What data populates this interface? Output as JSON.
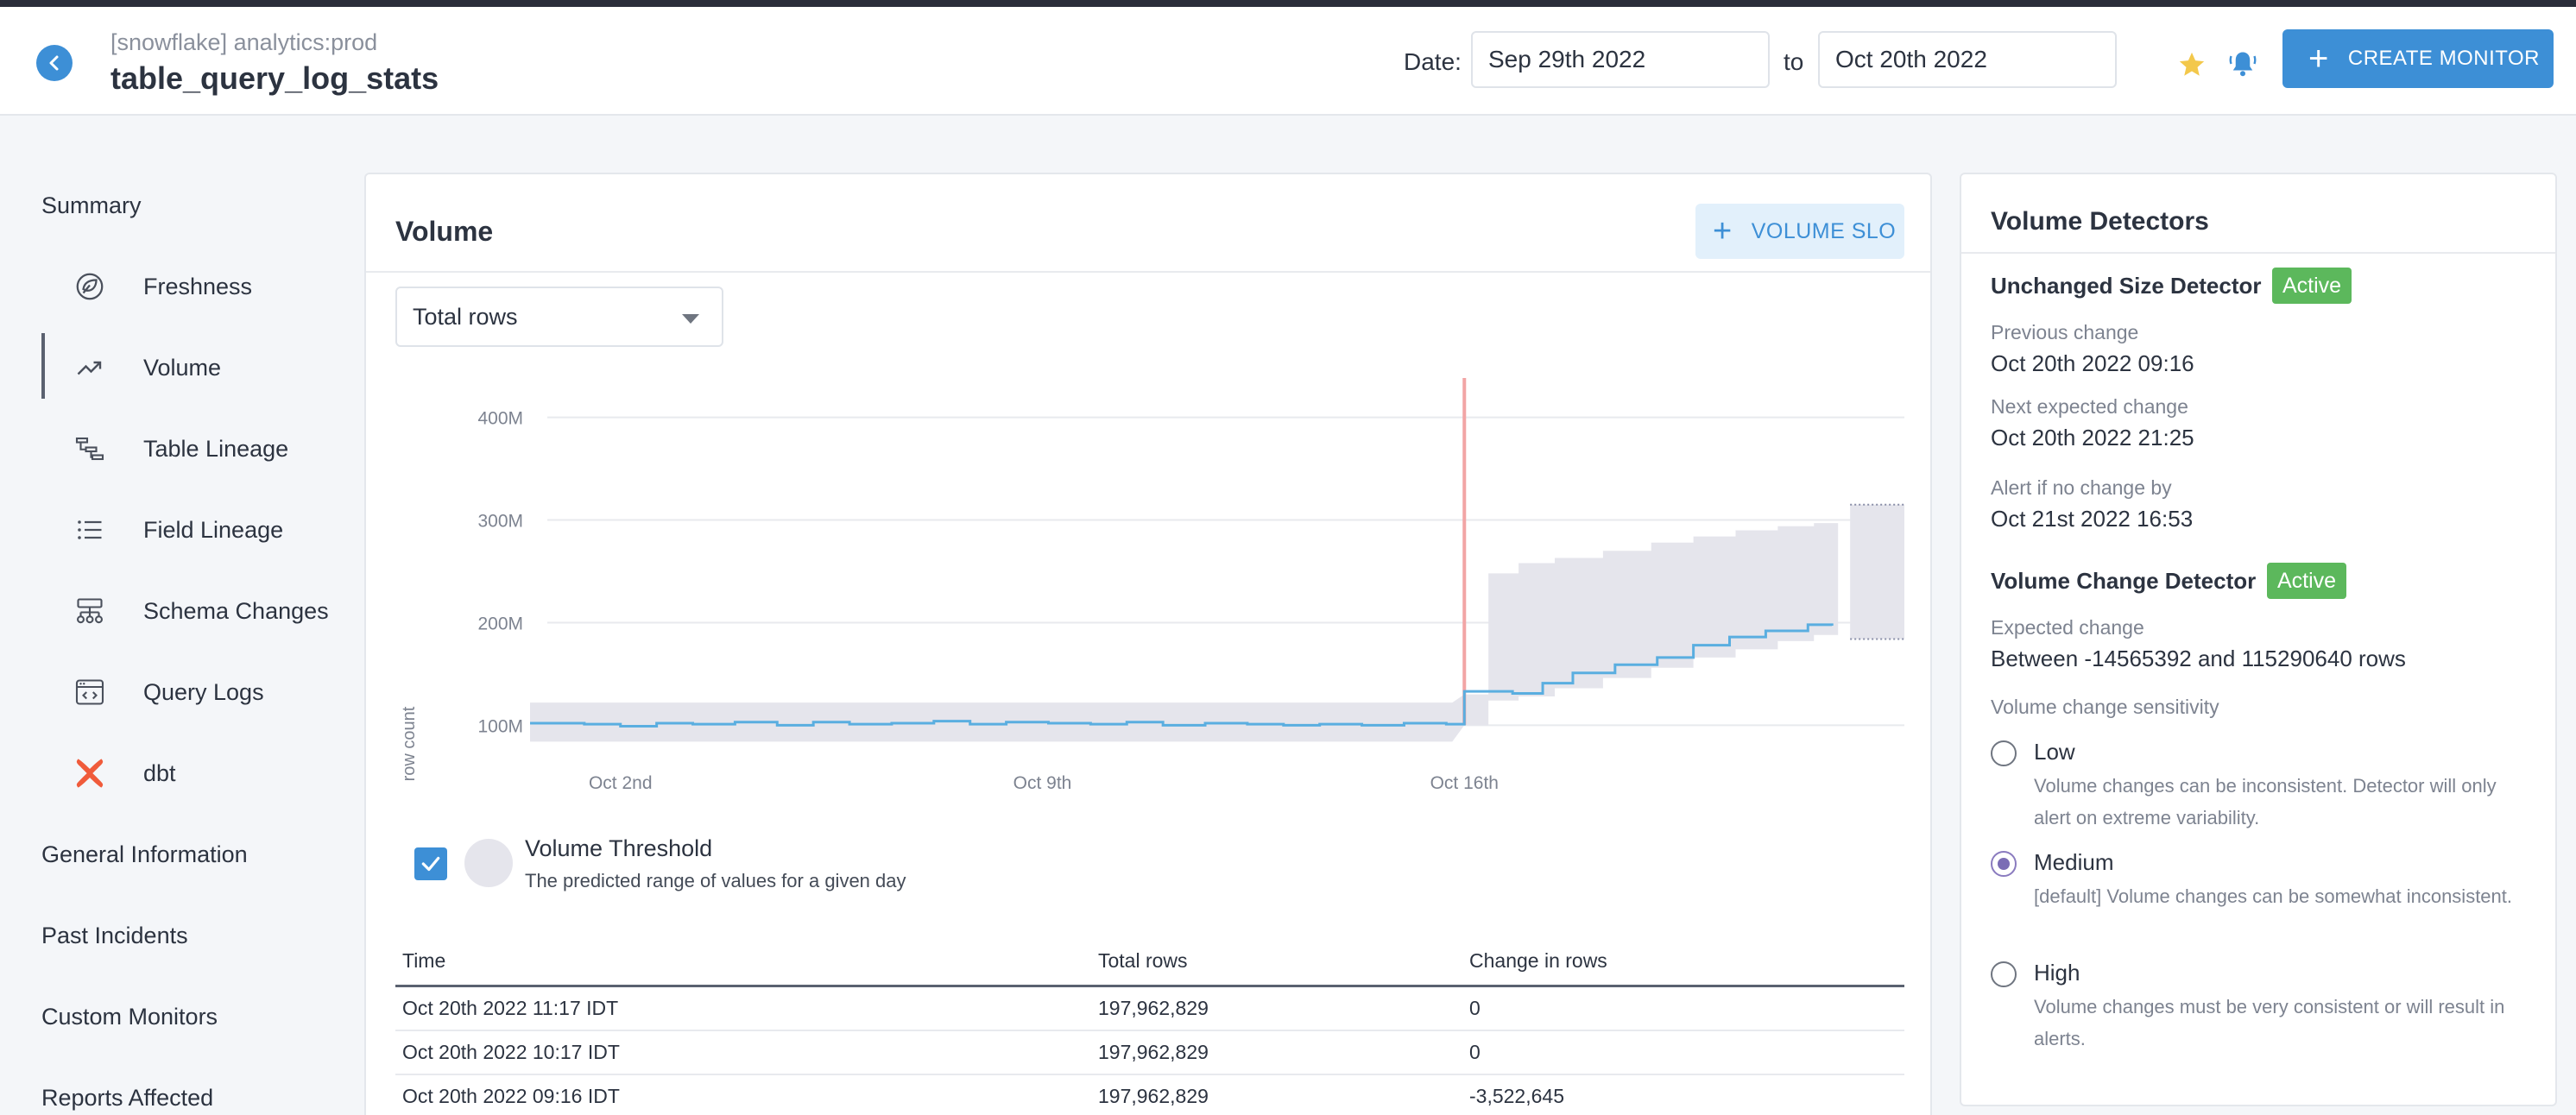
{
  "header": {
    "breadcrumb": "[snowflake] analytics:prod",
    "title": "table_query_log_stats",
    "date_label": "Date:",
    "date_from": "Sep 29th 2022",
    "to_label": "to",
    "date_to": "Oct 20th 2022",
    "create_monitor_label": "CREATE MONITOR"
  },
  "sidebar": {
    "items": [
      {
        "label": "Summary",
        "icon": ""
      },
      {
        "label": "Freshness",
        "icon": "leaf-icon"
      },
      {
        "label": "Volume",
        "icon": "trend-icon"
      },
      {
        "label": "Table Lineage",
        "icon": "lineage-icon"
      },
      {
        "label": "Field Lineage",
        "icon": "list-icon"
      },
      {
        "label": "Schema Changes",
        "icon": "schema-icon"
      },
      {
        "label": "Query Logs",
        "icon": "code-window-icon"
      },
      {
        "label": "dbt",
        "icon": "dbt-icon"
      },
      {
        "label": "General Information",
        "icon": ""
      },
      {
        "label": "Past Incidents",
        "icon": ""
      },
      {
        "label": "Custom Monitors",
        "icon": ""
      },
      {
        "label": "Reports Affected",
        "icon": ""
      }
    ],
    "active": "Volume"
  },
  "volume": {
    "title": "Volume",
    "slo_button_label": "VOLUME SLO",
    "metric_selected": "Total rows",
    "legend": {
      "title": "Volume Threshold",
      "description": "The predicted range of values for a given day"
    },
    "table": {
      "headers": [
        "Time",
        "Total rows",
        "Change in rows"
      ],
      "rows": [
        [
          "Oct 20th 2022 11:17 IDT",
          "197,962,829",
          "0"
        ],
        [
          "Oct 20th 2022 10:17 IDT",
          "197,962,829",
          "0"
        ],
        [
          "Oct 20th 2022 09:16 IDT",
          "197,962,829",
          "-3,522,645"
        ]
      ]
    }
  },
  "chart_data": {
    "type": "line",
    "ylabel": "row count",
    "xlabel": "",
    "yticks": [
      "100M",
      "200M",
      "300M",
      "400M"
    ],
    "ylim": [
      70000000,
      430000000
    ],
    "xticks": [
      "Oct 2nd",
      "Oct 9th",
      "Oct 16th"
    ],
    "x_range_days": [
      0.5,
      22.6
    ],
    "xtick_days": [
      2,
      9,
      16
    ],
    "event_line_day": 16.0,
    "colors": {
      "line": "#5aaee0",
      "band": "#e5e5ec",
      "event": "#f2a5a5"
    },
    "series": [
      {
        "name": "Total rows",
        "x_days": [
          0.5,
          1.4,
          2.0,
          2.6,
          3.2,
          3.9,
          4.6,
          5.2,
          5.8,
          6.5,
          7.2,
          7.8,
          8.4,
          9.1,
          9.8,
          10.4,
          11.0,
          11.7,
          12.4,
          13.0,
          13.6,
          14.3,
          15.0,
          15.7,
          16.0,
          16.8,
          17.3,
          17.8,
          18.5,
          19.2,
          19.8,
          20.4,
          21.0,
          21.7,
          22.1
        ],
        "values": [
          102,
          101,
          99,
          102,
          101,
          103,
          100,
          103,
          101,
          102,
          104,
          101,
          103,
          102,
          101,
          103,
          100,
          102,
          101,
          100,
          101,
          100,
          102,
          101,
          133,
          131,
          141,
          151,
          159,
          166,
          178,
          186,
          192,
          198,
          197
        ]
      },
      {
        "name": "Volume Threshold",
        "type": "band",
        "x_days": [
          0.5,
          15.8,
          16.0,
          16.4,
          16.9,
          17.5,
          18.3,
          19.1,
          19.8,
          20.5,
          21.2,
          21.8,
          22.2
        ],
        "upper": [
          122,
          122,
          130,
          248,
          258,
          263,
          270,
          278,
          284,
          290,
          294,
          297,
          294
        ],
        "lower": [
          84,
          84,
          100,
          124,
          128,
          136,
          146,
          156,
          166,
          174,
          182,
          188,
          187
        ]
      },
      {
        "name": "Next day threshold",
        "type": "band",
        "x_days": [
          22.4,
          23.3
        ],
        "upper": [
          315,
          315
        ],
        "lower": [
          184,
          184
        ]
      }
    ]
  },
  "detectors": {
    "title": "Volume Detectors",
    "unchanged": {
      "title": "Unchanged Size Detector",
      "status": "Active",
      "previous_label": "Previous change",
      "previous_value": "Oct 20th 2022 09:16",
      "next_label": "Next expected change",
      "next_value": "Oct 20th 2022 21:25",
      "alert_label": "Alert if no change by",
      "alert_value": "Oct 21st 2022 16:53"
    },
    "volume_change": {
      "title": "Volume Change Detector",
      "status": "Active",
      "expected_label": "Expected change",
      "expected_value": "Between -14565392 and 115290640 rows",
      "sensitivity_label": "Volume change sensitivity",
      "options": [
        {
          "label": "Low",
          "description": "Volume changes can be inconsistent. Detector will only alert on extreme variability.",
          "checked": false
        },
        {
          "label": "Medium",
          "description": "[default] Volume changes can be somewhat inconsistent.",
          "checked": true
        },
        {
          "label": "High",
          "description": "Volume changes must be very consistent or will result in alerts.",
          "checked": false
        }
      ]
    }
  }
}
